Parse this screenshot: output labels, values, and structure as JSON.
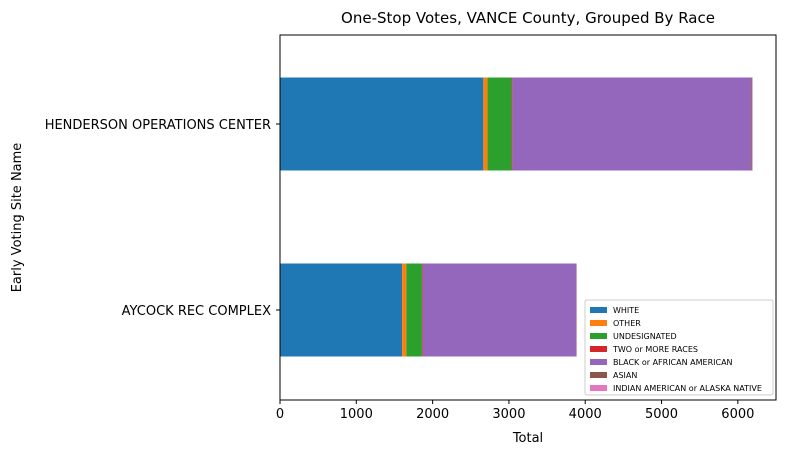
{
  "chart_data": {
    "type": "bar",
    "orientation": "horizontal",
    "stacked": true,
    "title": "One-Stop Votes, VANCE County, Grouped By Race",
    "xlabel": "Total",
    "ylabel": "Early Voting Site Name",
    "xlim": [
      0,
      6500
    ],
    "xticks": [
      0,
      1000,
      2000,
      3000,
      4000,
      5000,
      6000
    ],
    "categories": [
      "AYCOCK REC COMPLEX",
      "HENDERSON OPERATIONS CENTER"
    ],
    "series": [
      {
        "name": "WHITE",
        "color": "#1f77b4",
        "values": [
          1600,
          2665
        ]
      },
      {
        "name": "OTHER",
        "color": "#ff7f0e",
        "values": [
          55,
          55
        ]
      },
      {
        "name": "UNDESIGNATED",
        "color": "#2ca02c",
        "values": [
          205,
          315
        ]
      },
      {
        "name": "TWO or MORE RACES",
        "color": "#d62728",
        "values": [
          10,
          10
        ]
      },
      {
        "name": "BLACK or AFRICAN AMERICAN",
        "color": "#9467bd",
        "values": [
          2010,
          3130
        ]
      },
      {
        "name": "ASIAN",
        "color": "#8c564b",
        "values": [
          5,
          15
        ]
      },
      {
        "name": "INDIAN AMERICAN or ALASKA NATIVE",
        "color": "#e377c2",
        "values": [
          3,
          3
        ]
      }
    ],
    "grid": false,
    "legend_position": "lower-right"
  }
}
